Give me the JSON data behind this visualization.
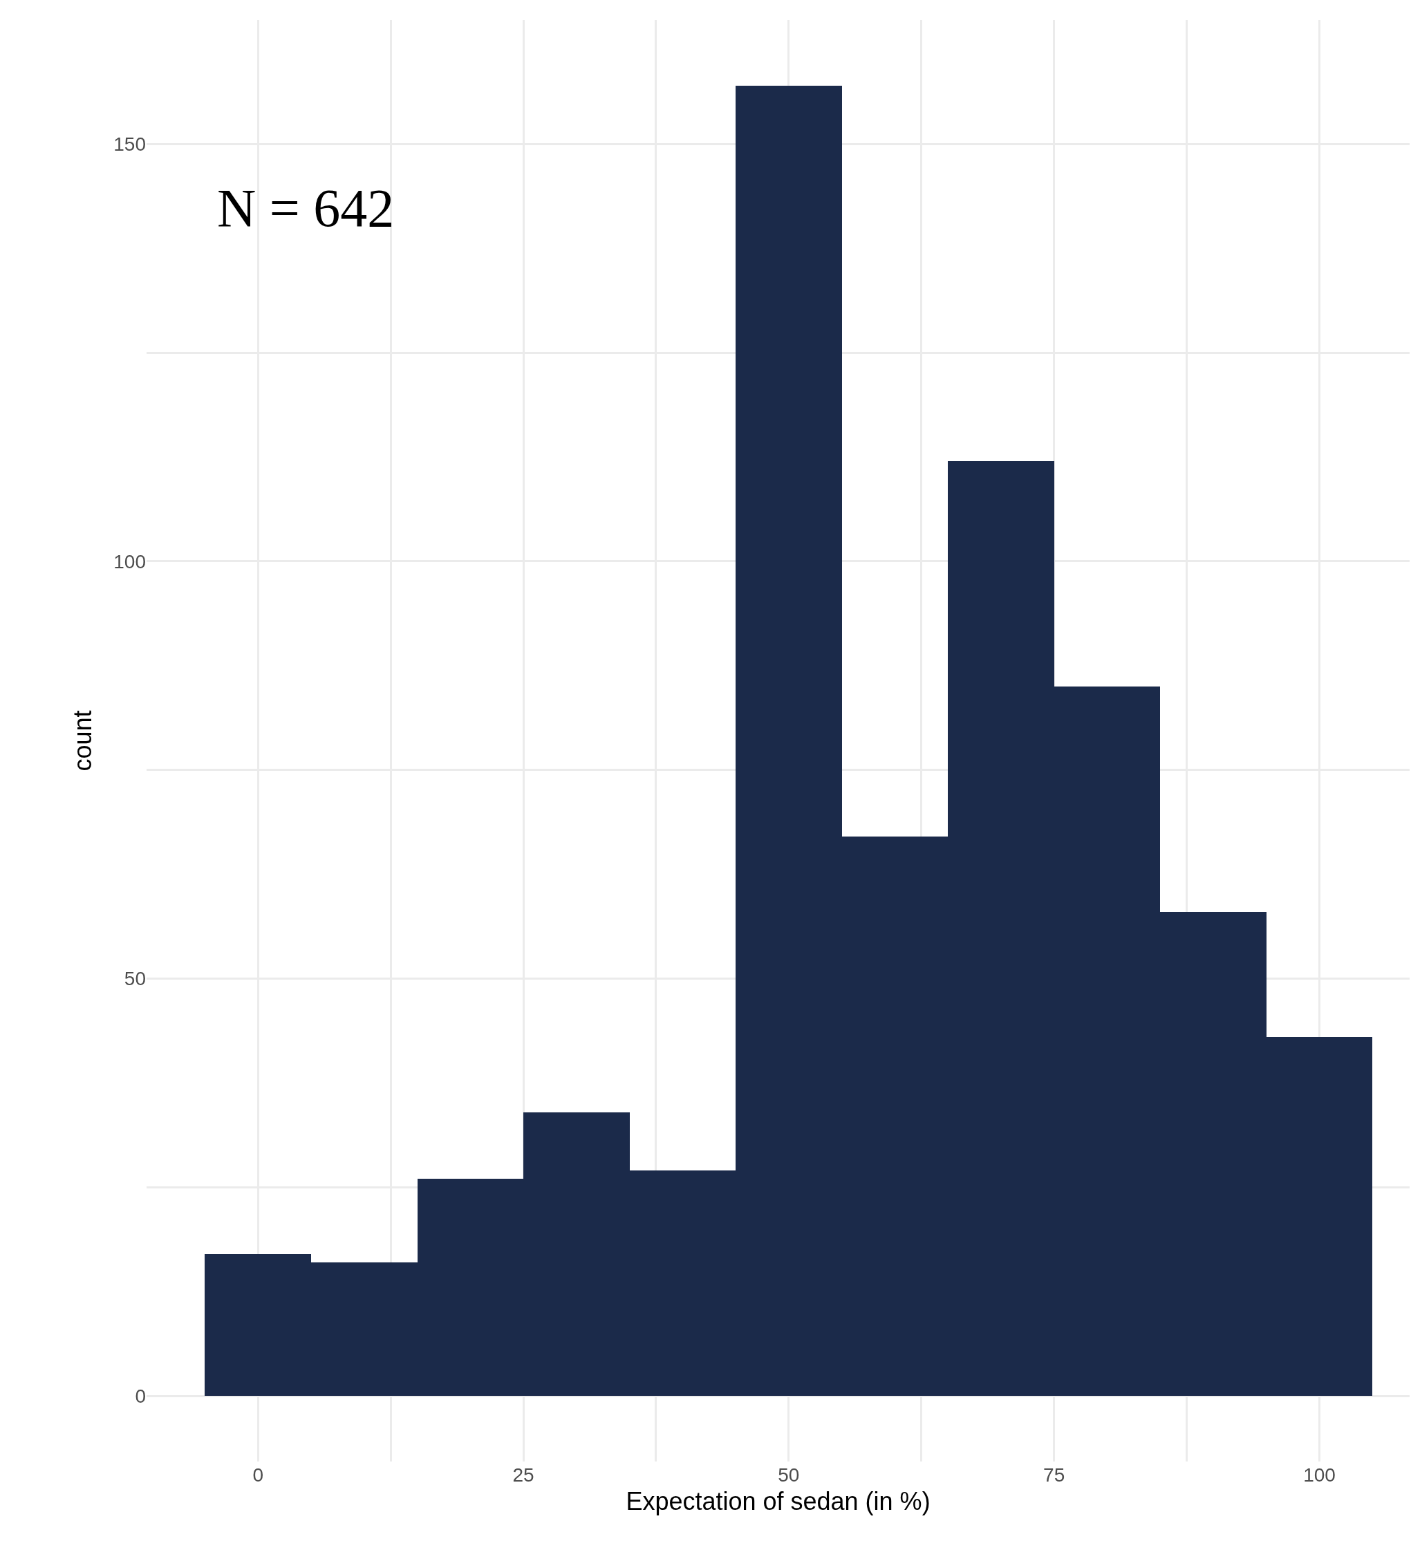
{
  "chart_data": {
    "type": "histogram",
    "xlabel": "Expectation of sedan (in %)",
    "ylabel": "count",
    "bins": [
      -5,
      5,
      15,
      25,
      35,
      45,
      55,
      65,
      75,
      85,
      95,
      105
    ],
    "values": [
      17,
      16,
      26,
      34,
      27,
      157,
      67,
      112,
      85,
      58,
      43
    ],
    "color": "#1b2a4a",
    "xlim": [
      -10.5,
      108.5
    ],
    "ylim": [
      -7.85,
      164.85
    ],
    "xticks": [
      0,
      {
        "value": 12.5,
        "label": null
      },
      25,
      {
        "value": 37.5,
        "label": null
      },
      50,
      {
        "value": 62.5,
        "label": null
      },
      75,
      {
        "value": 87.5,
        "label": null
      },
      100
    ],
    "yticks": [
      0,
      {
        "value": 25,
        "label": null
      },
      50,
      {
        "value": 75,
        "label": null
      },
      100,
      {
        "value": 125,
        "label": null
      },
      150
    ],
    "grid": true,
    "annotations": [
      "N = 642"
    ]
  }
}
